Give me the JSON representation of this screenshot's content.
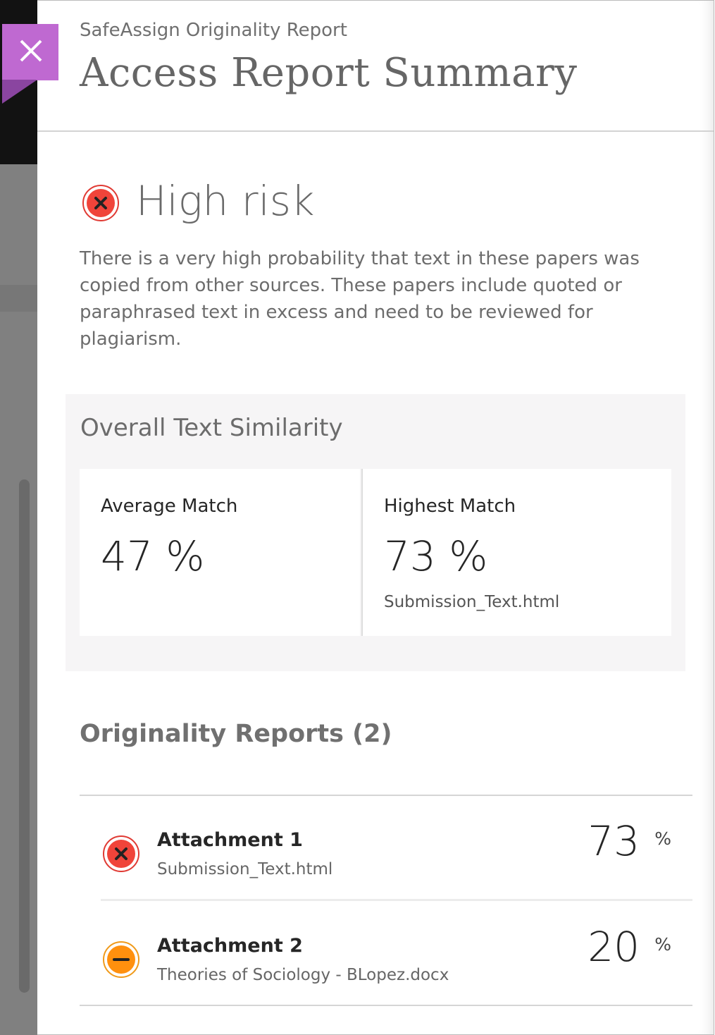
{
  "header": {
    "subtitle": "SafeAssign Originality Report",
    "title": "Access Report Summary",
    "close_icon": "close-icon"
  },
  "risk": {
    "level": "High risk",
    "icon": "error-x-icon",
    "color": "#f0443a",
    "description": "There is a very high probability that text in these papers was copied from other sources. These papers include quoted or paraphrased text in excess and need to be reviewed for plagiarism."
  },
  "similarity": {
    "title": "Overall Text Similarity",
    "average": {
      "label": "Average Match",
      "value": "47 %"
    },
    "highest": {
      "label": "Highest Match",
      "value": "73 %",
      "file": "Submission_Text.html"
    }
  },
  "reports": {
    "title": "Originality Reports (2)",
    "items": [
      {
        "name": "Attachment 1",
        "file": "Submission_Text.html",
        "percent": "73",
        "unit": "%",
        "status": "high",
        "color": "#f0443a"
      },
      {
        "name": "Attachment 2",
        "file": "Theories of Sociology - BLopez.docx",
        "percent": "20",
        "unit": "%",
        "status": "medium",
        "color": "#ff900e"
      }
    ]
  },
  "colors": {
    "close_button": "#bf69d1"
  }
}
